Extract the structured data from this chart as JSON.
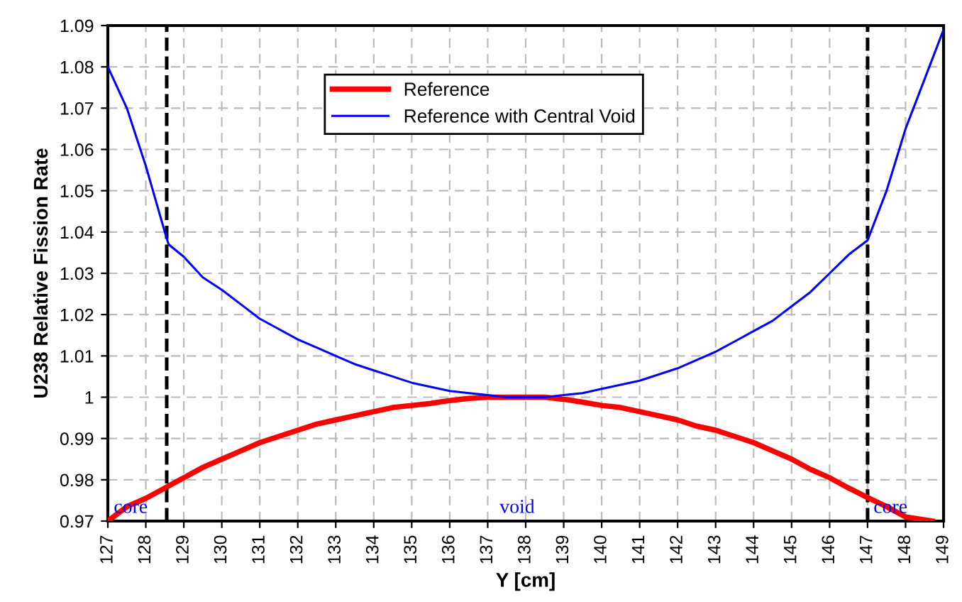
{
  "chart_data": {
    "type": "line",
    "xlabel": "Y [cm]",
    "ylabel": "U238 Relative Fission Rate",
    "xlim": [
      127,
      149
    ],
    "ylim": [
      0.97,
      1.09
    ],
    "xticks": [
      127,
      128,
      129,
      130,
      131,
      132,
      133,
      134,
      135,
      136,
      137,
      138,
      139,
      140,
      141,
      142,
      143,
      144,
      145,
      146,
      147,
      148,
      149
    ],
    "yticks": [
      0.97,
      0.98,
      0.99,
      1,
      1.01,
      1.02,
      1.03,
      1.04,
      1.05,
      1.06,
      1.07,
      1.08,
      1.09
    ],
    "grid": true,
    "legend": "top",
    "line_style": "solid",
    "marker": "none",
    "series": [
      {
        "name": "Reference",
        "color": "#ff0000",
        "x": [
          127,
          127.5,
          128,
          128.5,
          129,
          129.5,
          130,
          130.5,
          131,
          131.5,
          132,
          132.5,
          133,
          133.5,
          134,
          134.5,
          135,
          135.5,
          136,
          136.5,
          137,
          137.5,
          138,
          138.5,
          139,
          139.5,
          140,
          140.5,
          141,
          141.5,
          142,
          142.5,
          143,
          143.5,
          144,
          144.5,
          145,
          145.5,
          146,
          146.5,
          147,
          147.5,
          148,
          148.7
        ],
        "values": [
          0.97,
          0.9735,
          0.9755,
          0.978,
          0.9805,
          0.983,
          0.985,
          0.987,
          0.989,
          0.9905,
          0.992,
          0.9935,
          0.9945,
          0.9955,
          0.9965,
          0.9975,
          0.998,
          0.9985,
          0.9992,
          0.9997,
          1.0,
          1.0,
          1.0,
          1.0,
          0.9995,
          0.9988,
          0.998,
          0.9975,
          0.9965,
          0.9955,
          0.9945,
          0.993,
          0.992,
          0.9905,
          0.989,
          0.987,
          0.985,
          0.9825,
          0.9805,
          0.978,
          0.9757,
          0.9735,
          0.971,
          0.97
        ]
      },
      {
        "name": "Reference with Central Void",
        "color": "#0000ff",
        "x": [
          127,
          127.5,
          128,
          128.5,
          128.6,
          129,
          129.5,
          130,
          130.5,
          131,
          131.5,
          132,
          132.5,
          133,
          133.5,
          134,
          134.5,
          135,
          135.5,
          136,
          136.5,
          137,
          137.5,
          138,
          138.5,
          139,
          139.5,
          140,
          140.5,
          141,
          141.5,
          142,
          142.5,
          143,
          143.5,
          144,
          144.5,
          145,
          145.5,
          146,
          146.5,
          147,
          147.5,
          148,
          148.5,
          149
        ],
        "values": [
          1.08,
          1.07,
          1.056,
          1.04,
          1.037,
          1.034,
          1.029,
          1.026,
          1.0225,
          1.019,
          1.0165,
          1.014,
          1.012,
          1.01,
          1.008,
          1.0065,
          1.005,
          1.0035,
          1.0025,
          1.0015,
          1.001,
          1.0005,
          1.0,
          1.0,
          1.0,
          1.0005,
          1.001,
          1.002,
          1.003,
          1.004,
          1.0055,
          1.007,
          1.009,
          1.011,
          1.0135,
          1.016,
          1.0185,
          1.022,
          1.0255,
          1.03,
          1.0345,
          1.038,
          1.05,
          1.065,
          1.077,
          1.089
        ]
      }
    ],
    "ref_lines": [
      {
        "axis": "x",
        "value": 128.55,
        "color": "#000000",
        "line_style": "dashed"
      },
      {
        "axis": "x",
        "value": 147,
        "color": "#000000",
        "line_style": "dashed"
      }
    ],
    "annotations": [
      "core",
      "void",
      "core"
    ]
  }
}
